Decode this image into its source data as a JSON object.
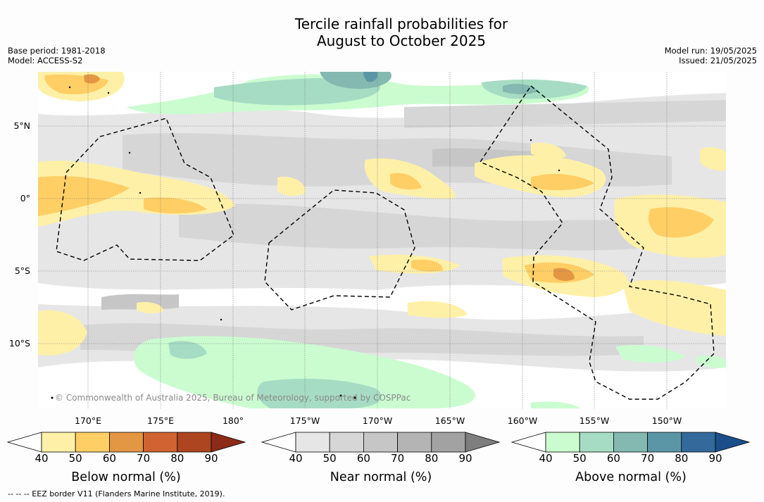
{
  "title_line1": "Tercile rainfall probabilities for",
  "title_line2": "August to October 2025",
  "base_period": "Base period: 1981-2018",
  "model": "Model: ACCESS-S2",
  "model_run": "Model run: 19/05/2025",
  "issued": "Issued: 21/05/2025",
  "lat_labels": [
    "5°N",
    "0°",
    "5°S",
    "10°S"
  ],
  "lon_labels": [
    "170°E",
    "175°E",
    "180°",
    "175°W",
    "170°W",
    "165°W",
    "160°W",
    "155°W",
    "150°W"
  ],
  "credit": "© Commonwealth of Australia 2025, Bureau of Meteorology, supported by COSPPac",
  "colorbars": [
    {
      "title": "Below normal (%)",
      "ticks": [
        "40",
        "50",
        "60",
        "70",
        "80",
        "90"
      ],
      "colors": [
        "#fff0a8",
        "#ffce64",
        "#e39742",
        "#cf6332",
        "#ad4521",
        "#8c2b18"
      ]
    },
    {
      "title": "Near normal (%)",
      "ticks": [
        "40",
        "50",
        "60",
        "70",
        "80",
        "90"
      ],
      "colors": [
        "#e6e6e6",
        "#d6d6d6",
        "#c6c6c6",
        "#b4b4b4",
        "#a2a2a2",
        "#7e7e7e"
      ]
    },
    {
      "title": "Above normal (%)",
      "ticks": [
        "40",
        "50",
        "60",
        "70",
        "80",
        "90"
      ],
      "colors": [
        "#cbfcd0",
        "#a6dcc3",
        "#83b9b1",
        "#5b96a6",
        "#336a9b",
        "#1c4f8a"
      ]
    }
  ],
  "eez_note": "--  --  -- EEZ border V11 (Flanders Marine Institute, 2019)."
}
